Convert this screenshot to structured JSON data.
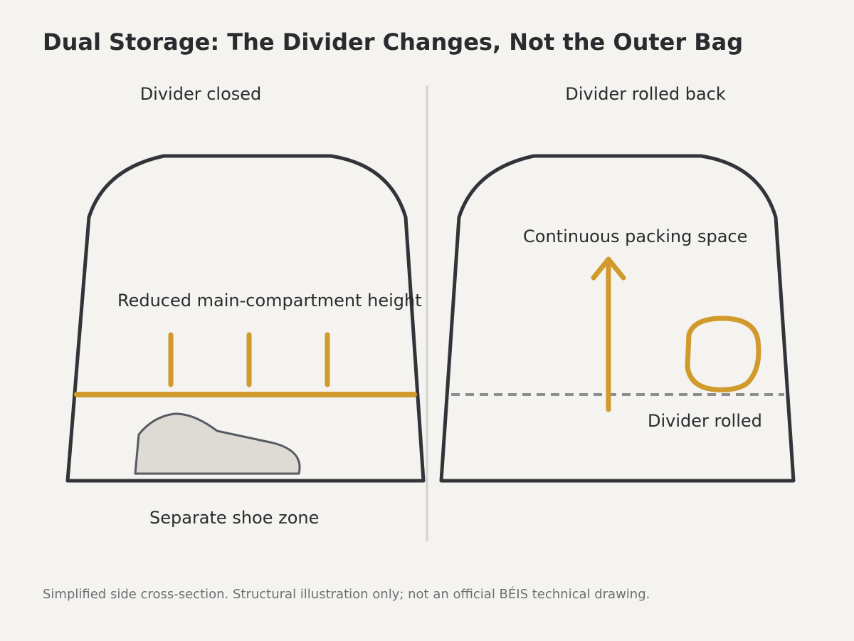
{
  "title": "Dual Storage: The Divider Changes, Not the Outer Bag",
  "panels": {
    "left": {
      "label": "Divider closed",
      "main_annotation": "Reduced main-compartment height",
      "shoe_annotation": "Separate shoe zone"
    },
    "right": {
      "label": "Divider rolled back",
      "space_annotation": "Continuous packing space",
      "divider_annotation": "Divider rolled"
    }
  },
  "footnote": "Simplified side cross-section. Structural illustration only; not an official BÉIS technical drawing.",
  "colors": {
    "background": "#f4f3ef",
    "outline": "#32343a",
    "accent": "#d09a2c",
    "shoe_fill": "#dedbd4",
    "shoe_stroke": "#575a62",
    "dashed": "#8e8e92",
    "separator": "#d3d2ce"
  },
  "icons": {
    "shoe": "shoe-icon",
    "arrow": "arrow-up-icon",
    "rolled_divider": "rolled-divider-icon"
  }
}
